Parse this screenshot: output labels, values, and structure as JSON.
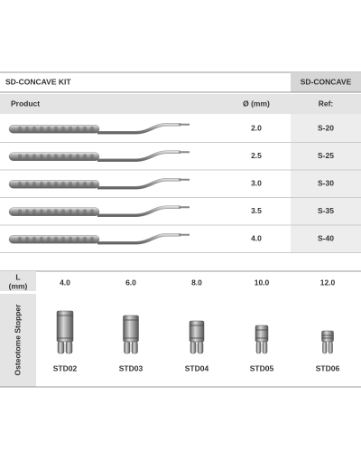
{
  "header": {
    "title": "SD-CONCAVE KIT",
    "code": "SD-CONCAVE"
  },
  "table": {
    "columns": [
      "Product",
      "Ø (mm)",
      "Ref:"
    ],
    "rows": [
      [
        "2.0",
        "S-20"
      ],
      [
        "2.5",
        "S-25"
      ],
      [
        "3.0",
        "S-30"
      ],
      [
        "3.5",
        "S-35"
      ],
      [
        "4.0",
        "S-40"
      ]
    ]
  },
  "stoppers": {
    "length_header": [
      "L",
      "(mm)"
    ],
    "side_label": "Osteotome Stopper",
    "lengths": [
      "4.0",
      "6.0",
      "8.0",
      "10.0",
      "12.0"
    ],
    "refs": [
      "STD02",
      "STD03",
      "STD04",
      "STD05",
      "STD06"
    ]
  }
}
